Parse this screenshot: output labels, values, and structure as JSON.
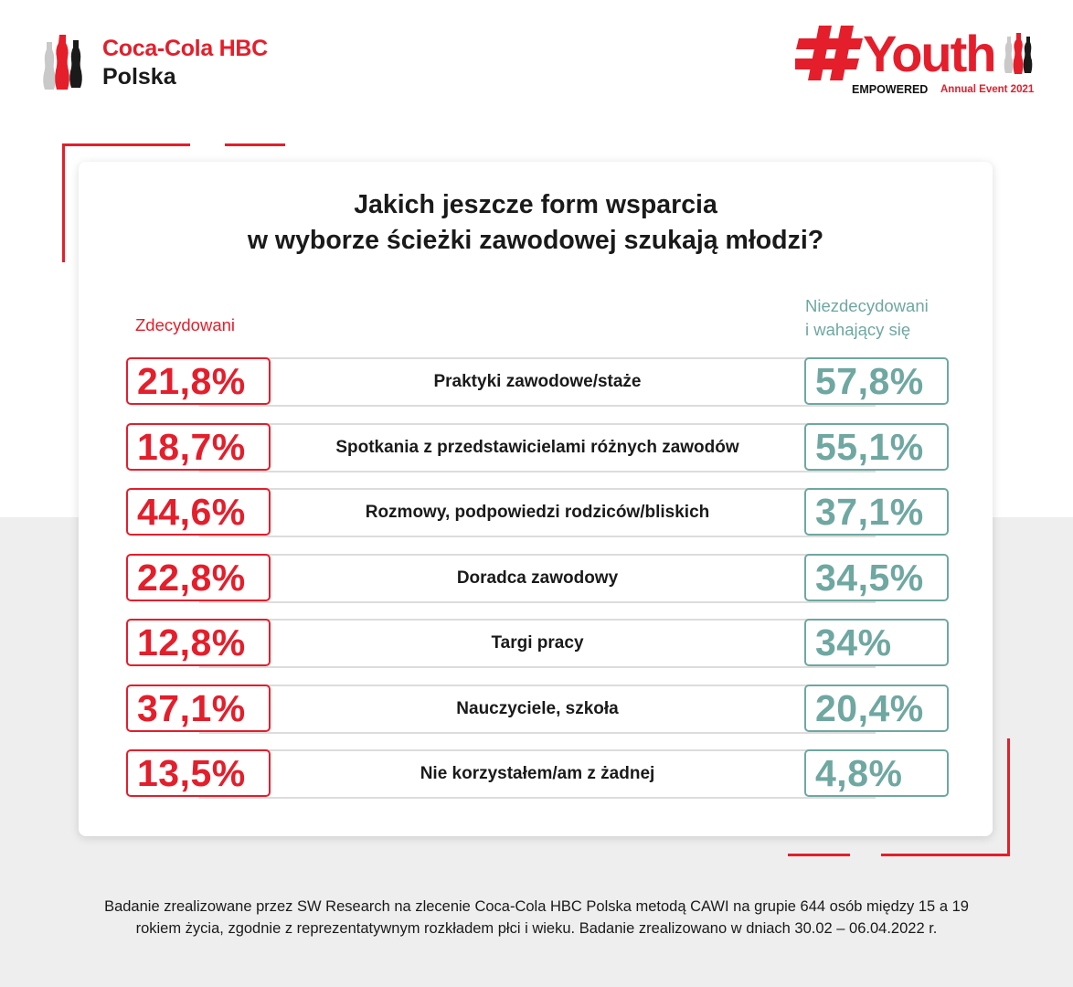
{
  "brand": {
    "name": "Coca-Cola HBC",
    "sub": "Polska",
    "icon": "bottles-icon"
  },
  "event": {
    "hashtag": "#Youth",
    "empowered": "EMPOWERED",
    "annual": "Annual Event 2021",
    "icon": "youth-logo-icon"
  },
  "colors": {
    "red": "#e41e2b",
    "teal": "#6fa7a1",
    "background_band": "#eeeeee"
  },
  "chart_data": {
    "type": "table",
    "title_lines": [
      "Jakich jeszcze form wsparcia",
      "w wyborze ścieżki zawodowej szukają młodzi?"
    ],
    "series": [
      {
        "name": "Zdecydowani",
        "color": "#e41e2b"
      },
      {
        "name_lines": [
          "Niezdecydowani",
          "i wahający się"
        ],
        "color": "#6fa7a1"
      }
    ],
    "rows": [
      {
        "category": "Praktyki zawodowe/staże",
        "left": "21,8%",
        "right": "57,8%"
      },
      {
        "category": "Spotkania z przedstawicielami różnych zawodów",
        "left": "18,7%",
        "right": "55,1%"
      },
      {
        "category": "Rozmowy, podpowiedzi rodziców/bliskich",
        "left": "44,6%",
        "right": "37,1%"
      },
      {
        "category": "Doradca zawodowy",
        "left": "22,8%",
        "right": "34,5%"
      },
      {
        "category": "Targi pracy",
        "left": "12,8%",
        "right": "34%"
      },
      {
        "category": "Nauczyciele, szkoła",
        "left": "37,1%",
        "right": "20,4%"
      },
      {
        "category": "Nie korzystałem/am z żadnej",
        "left": "13,5%",
        "right": "4,8%"
      }
    ]
  },
  "footer": {
    "lines": [
      "Badanie zrealizowane przez SW Research na zlecenie Coca-Cola HBC Polska metodą CAWI na grupie 644 osób między 15 a 19",
      "rokiem życia, zgodnie z reprezentatywnym rozkładem płci i wieku. Badanie zrealizowano w dniach 30.02 – 06.04.2022 r."
    ]
  }
}
